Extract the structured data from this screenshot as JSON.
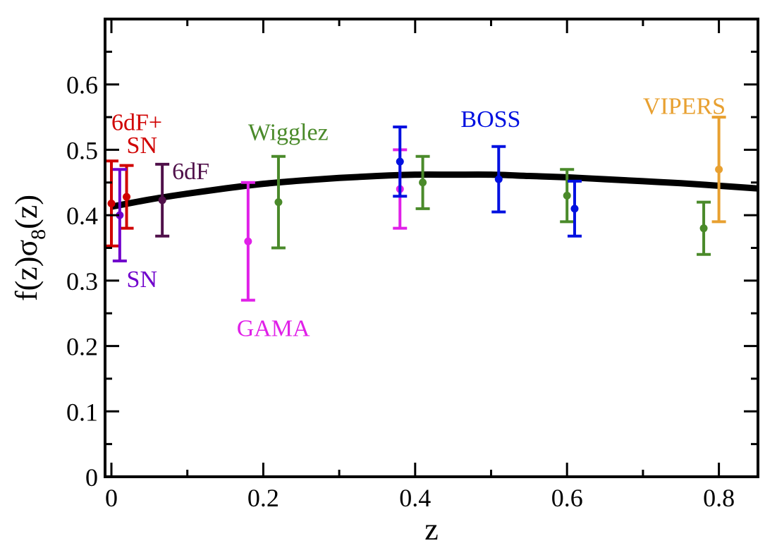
{
  "chart_data": {
    "type": "scatter",
    "title": "",
    "xlabel": "z",
    "ylabel": {
      "main": "f(z)σ",
      "sub": "8",
      "tail": "(z)"
    },
    "xlim": [
      -0.01,
      0.85
    ],
    "ylim": [
      0,
      0.7
    ],
    "x_ticks": [
      0,
      0.2,
      0.4,
      0.6,
      0.8
    ],
    "x_tick_labels": [
      "0",
      "0.2",
      "0.4",
      "0.6",
      "0.8"
    ],
    "x_minor_ticks": [
      0.1,
      0.3,
      0.5,
      0.7
    ],
    "y_ticks": [
      0,
      0.1,
      0.2,
      0.3,
      0.4,
      0.5,
      0.6
    ],
    "y_tick_labels": [
      "0",
      "0.1",
      "0.2",
      "0.3",
      "0.4",
      "0.5",
      "0.6"
    ],
    "y_minor_ticks": [
      0.05,
      0.15,
      0.25,
      0.35,
      0.45,
      0.55,
      0.65
    ],
    "grid": false,
    "model_curve": {
      "name": "model",
      "color": "#000000",
      "x": [
        0.0,
        0.05,
        0.1,
        0.15,
        0.2,
        0.25,
        0.3,
        0.35,
        0.4,
        0.45,
        0.5,
        0.55,
        0.6,
        0.65,
        0.7,
        0.75,
        0.8,
        0.85
      ],
      "y": [
        0.413,
        0.424,
        0.433,
        0.441,
        0.448,
        0.453,
        0.457,
        0.46,
        0.462,
        0.462,
        0.462,
        0.46,
        0.458,
        0.455,
        0.452,
        0.449,
        0.445,
        0.441
      ]
    },
    "series": [
      {
        "name": "6dF+SN",
        "color": "#d00000",
        "points": [
          {
            "x": 0.0,
            "y": 0.418,
            "err": 0.065
          },
          {
            "x": 0.02,
            "y": 0.428,
            "err": 0.048
          }
        ]
      },
      {
        "name": "SN",
        "color": "#7000cc",
        "points": [
          {
            "x": 0.011,
            "y": 0.4,
            "err": 0.07
          }
        ]
      },
      {
        "name": "6dF",
        "color": "#50104a",
        "points": [
          {
            "x": 0.067,
            "y": 0.423,
            "err": 0.055
          }
        ]
      },
      {
        "name": "GAMA",
        "color": "#e020e8",
        "points": [
          {
            "x": 0.18,
            "y": 0.36,
            "err": 0.09
          },
          {
            "x": 0.38,
            "y": 0.44,
            "err": 0.06
          }
        ]
      },
      {
        "name": "Wigglez",
        "color": "#4a8a2a",
        "points": [
          {
            "x": 0.22,
            "y": 0.42,
            "err": 0.07
          },
          {
            "x": 0.41,
            "y": 0.45,
            "err": 0.04
          },
          {
            "x": 0.6,
            "y": 0.43,
            "err": 0.04
          },
          {
            "x": 0.78,
            "y": 0.38,
            "err": 0.04
          }
        ]
      },
      {
        "name": "BOSS",
        "color": "#0010e0",
        "points": [
          {
            "x": 0.38,
            "y": 0.482,
            "err": 0.053
          },
          {
            "x": 0.51,
            "y": 0.455,
            "err": 0.05
          },
          {
            "x": 0.61,
            "y": 0.41,
            "err": 0.042
          }
        ]
      },
      {
        "name": "VIPERS",
        "color": "#e8a030",
        "points": [
          {
            "x": 0.8,
            "y": 0.47,
            "err": 0.08
          }
        ]
      }
    ],
    "annotations": [
      {
        "text": "6dF+",
        "color": "#d00000",
        "x": 0.0,
        "y": 0.53
      },
      {
        "text": "SN",
        "color": "#d00000",
        "x": 0.02,
        "y": 0.495
      },
      {
        "text": "6dF",
        "color": "#50104a",
        "x": 0.08,
        "y": 0.455
      },
      {
        "text": "SN",
        "color": "#7000cc",
        "x": 0.02,
        "y": 0.29
      },
      {
        "text": "GAMA",
        "color": "#e020e8",
        "x": 0.165,
        "y": 0.215
      },
      {
        "text": "Wigglez",
        "color": "#4a8a2a",
        "x": 0.18,
        "y": 0.515
      },
      {
        "text": "BOSS",
        "color": "#0010e0",
        "x": 0.46,
        "y": 0.535
      },
      {
        "text": "VIPERS",
        "color": "#e8a030",
        "x": 0.7,
        "y": 0.555
      }
    ]
  }
}
